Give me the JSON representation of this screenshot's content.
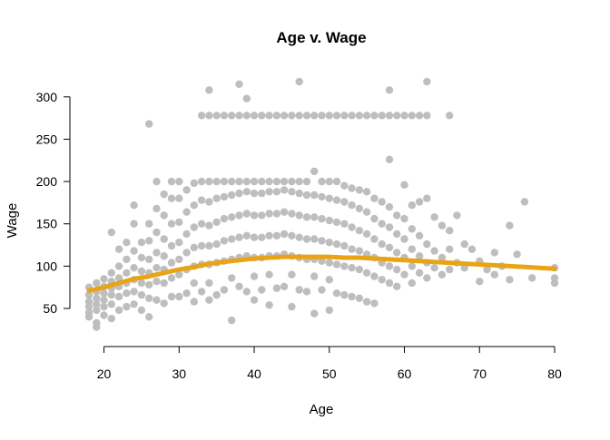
{
  "chart_data": {
    "type": "scatter",
    "title": "Age v. Wage",
    "xlabel": "Age",
    "ylabel": "Wage",
    "xlim": [
      18,
      80
    ],
    "ylim": [
      20,
      318
    ],
    "x_ticks": [
      20,
      30,
      40,
      50,
      60,
      70,
      80
    ],
    "y_ticks": [
      50,
      100,
      150,
      200,
      250,
      300
    ],
    "grid": false,
    "legend": "none",
    "point_color": "#bebebe",
    "fit_color": "#e8a317",
    "series": [
      {
        "type": "points",
        "x": [
          18,
          18,
          18,
          18,
          18,
          18,
          19,
          19,
          19,
          19,
          19,
          19,
          19,
          20,
          20,
          20,
          20,
          20,
          20,
          21,
          21,
          21,
          21,
          21,
          21,
          21,
          22,
          22,
          22,
          22,
          22,
          22,
          23,
          23,
          23,
          23,
          23,
          23,
          24,
          24,
          24,
          24,
          24,
          24,
          24,
          25,
          25,
          25,
          25,
          25,
          25,
          26,
          26,
          26,
          26,
          26,
          26,
          26,
          27,
          27,
          27,
          27,
          27,
          27,
          27,
          28,
          28,
          28,
          28,
          28,
          28,
          28,
          29,
          29,
          29,
          29,
          29,
          29,
          29,
          30,
          30,
          30,
          30,
          30,
          30,
          30,
          31,
          31,
          31,
          31,
          31,
          31,
          32,
          32,
          32,
          32,
          32,
          32,
          32,
          33,
          33,
          33,
          33,
          33,
          33,
          34,
          34,
          34,
          34,
          34,
          34,
          34,
          35,
          35,
          35,
          35,
          35,
          35,
          36,
          36,
          36,
          36,
          36,
          36,
          37,
          37,
          37,
          37,
          37,
          37,
          37,
          38,
          38,
          38,
          38,
          38,
          38,
          39,
          39,
          39,
          39,
          39,
          39,
          40,
          40,
          40,
          40,
          40,
          40,
          40,
          41,
          41,
          41,
          41,
          41,
          41,
          42,
          42,
          42,
          42,
          42,
          42,
          42,
          43,
          43,
          43,
          43,
          43,
          43,
          44,
          44,
          44,
          44,
          44,
          44,
          45,
          45,
          45,
          45,
          45,
          45,
          45,
          46,
          46,
          46,
          46,
          46,
          46,
          47,
          47,
          47,
          47,
          47,
          47,
          48,
          48,
          48,
          48,
          48,
          48,
          48,
          49,
          49,
          49,
          49,
          49,
          49,
          50,
          50,
          50,
          50,
          50,
          50,
          50,
          51,
          51,
          51,
          51,
          51,
          51,
          52,
          52,
          52,
          52,
          52,
          52,
          53,
          53,
          53,
          53,
          53,
          53,
          54,
          54,
          54,
          54,
          54,
          54,
          55,
          55,
          55,
          55,
          55,
          55,
          56,
          56,
          56,
          56,
          56,
          56,
          57,
          57,
          57,
          57,
          57,
          58,
          58,
          58,
          58,
          58,
          58,
          59,
          59,
          59,
          59,
          59,
          60,
          60,
          60,
          60,
          60,
          61,
          61,
          61,
          61,
          61,
          62,
          62,
          62,
          62,
          63,
          63,
          63,
          63,
          64,
          64,
          64,
          65,
          65,
          65,
          66,
          66,
          66,
          67,
          67,
          68,
          68,
          69,
          70,
          70,
          71,
          72,
          72,
          73,
          74,
          74,
          75,
          76,
          77,
          80,
          80,
          80,
          33,
          34,
          35,
          36,
          37,
          38,
          39,
          40,
          41,
          42,
          43,
          44,
          45,
          46,
          47,
          48,
          49,
          50,
          51,
          52,
          53,
          54,
          55,
          56,
          57,
          58,
          59,
          60,
          61,
          62,
          63,
          66,
          34,
          38,
          46,
          63,
          26,
          39,
          58
        ],
        "y": [
          75,
          66,
          58,
          52,
          45,
          40,
          80,
          70,
          62,
          55,
          48,
          33,
          28,
          85,
          76,
          68,
          60,
          52,
          42,
          140,
          92,
          82,
          74,
          66,
          55,
          38,
          120,
          100,
          86,
          76,
          64,
          48,
          128,
          108,
          92,
          80,
          68,
          52,
          172,
          150,
          118,
          98,
          84,
          70,
          55,
          128,
          110,
          94,
          80,
          66,
          48,
          150,
          130,
          108,
          92,
          78,
          62,
          40,
          200,
          168,
          140,
          116,
          98,
          82,
          60,
          185,
          160,
          132,
          112,
          96,
          80,
          56,
          200,
          180,
          150,
          124,
          104,
          86,
          64,
          200,
          180,
          152,
          128,
          108,
          90,
          64,
          190,
          164,
          138,
          116,
          96,
          68,
          198,
          172,
          146,
          122,
          100,
          80,
          58,
          200,
          178,
          150,
          124,
          102,
          70,
          200,
          176,
          148,
          124,
          102,
          80,
          60,
          200,
          180,
          152,
          126,
          104,
          66,
          200,
          182,
          156,
          130,
          106,
          72,
          200,
          184,
          158,
          132,
          108,
          86,
          36,
          200,
          186,
          160,
          134,
          110,
          76,
          200,
          188,
          162,
          136,
          112,
          70,
          200,
          186,
          160,
          134,
          110,
          88,
          60,
          200,
          186,
          160,
          134,
          110,
          72,
          200,
          188,
          162,
          136,
          112,
          90,
          54,
          200,
          188,
          162,
          136,
          112,
          74,
          200,
          190,
          164,
          138,
          114,
          76,
          200,
          188,
          162,
          136,
          112,
          90,
          52,
          200,
          186,
          160,
          134,
          110,
          72,
          200,
          184,
          158,
          132,
          108,
          70,
          212,
          184,
          158,
          132,
          108,
          88,
          44,
          200,
          182,
          156,
          130,
          106,
          72,
          200,
          180,
          154,
          128,
          104,
          84,
          48,
          200,
          178,
          152,
          126,
          102,
          68,
          195,
          176,
          150,
          124,
          100,
          66,
          192,
          172,
          146,
          120,
          98,
          64,
          190,
          168,
          142,
          118,
          96,
          62,
          188,
          164,
          138,
          114,
          92,
          58,
          180,
          156,
          132,
          110,
          88,
          56,
          176,
          150,
          126,
          104,
          84,
          226,
          170,
          146,
          122,
          100,
          80,
          160,
          138,
          116,
          96,
          76,
          196,
          156,
          132,
          110,
          90,
          172,
          144,
          120,
          100,
          80,
          176,
          136,
          112,
          92,
          180,
          126,
          104,
          86,
          158,
          118,
          98,
          148,
          110,
          90,
          142,
          120,
          96,
          160,
          104,
          126,
          98,
          120,
          106,
          82,
          96,
          116,
          90,
          100,
          148,
          84,
          114,
          176,
          86,
          80,
          98,
          86,
          278,
          278,
          278,
          278,
          278,
          278,
          278,
          278,
          278,
          278,
          278,
          278,
          278,
          278,
          278,
          278,
          278,
          278,
          278,
          278,
          278,
          278,
          278,
          278,
          278,
          278,
          278,
          278,
          278,
          278,
          278,
          278,
          308,
          315,
          318,
          318,
          268,
          298,
          308
        ]
      },
      {
        "type": "fit",
        "x": [
          18,
          20,
          22,
          24,
          26,
          28,
          30,
          32,
          34,
          36,
          38,
          40,
          42,
          44,
          46,
          48,
          50,
          52,
          54,
          56,
          58,
          60,
          62,
          64,
          66,
          68,
          70,
          72,
          74,
          76,
          78,
          80
        ],
        "y": [
          71,
          75,
          80,
          85,
          88,
          92,
          96,
          99,
          103,
          105,
          107,
          109,
          110,
          111,
          111,
          111,
          111,
          110,
          110,
          109,
          108,
          107,
          106,
          105,
          104,
          103,
          102,
          101,
          100,
          99,
          98,
          97
        ]
      }
    ]
  }
}
